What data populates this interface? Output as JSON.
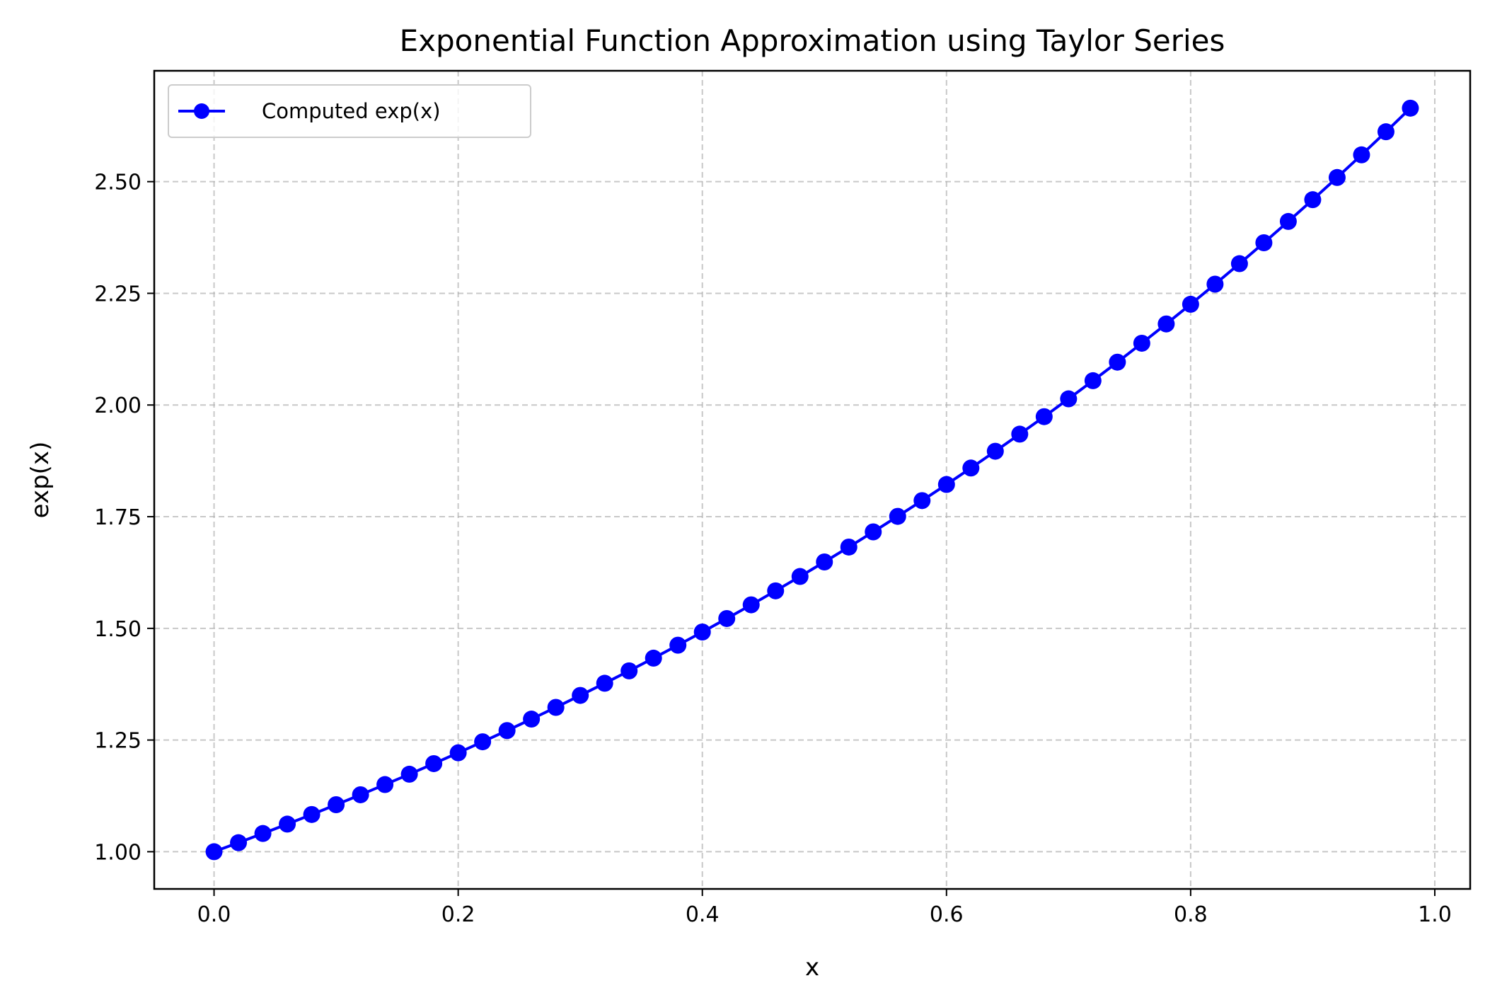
{
  "chart_data": {
    "type": "line",
    "title": "Exponential Function Approximation using Taylor Series",
    "xlabel": "x",
    "ylabel": "exp(x)",
    "xlim": [
      -0.049,
      1.029
    ],
    "ylim": [
      0.9167,
      2.7482
    ],
    "xticks": [
      0.0,
      0.2,
      0.4,
      0.6,
      0.8,
      1.0
    ],
    "xtick_labels": [
      "0.0",
      "0.2",
      "0.4",
      "0.6",
      "0.8",
      "1.0"
    ],
    "yticks": [
      1.0,
      1.25,
      1.5,
      1.75,
      2.0,
      2.25,
      2.5
    ],
    "ytick_labels": [
      "1.00",
      "1.25",
      "1.50",
      "1.75",
      "2.00",
      "2.25",
      "2.50"
    ],
    "grid": true,
    "legend_position": "top-left",
    "series": [
      {
        "name": "Computed exp(x)",
        "color": "#0000ff",
        "marker": "circle",
        "x": [
          0.0,
          0.02,
          0.04,
          0.06,
          0.08,
          0.1,
          0.12,
          0.14,
          0.16,
          0.18,
          0.2,
          0.22,
          0.24,
          0.26,
          0.28,
          0.3,
          0.32,
          0.34,
          0.36,
          0.38,
          0.4,
          0.42,
          0.44,
          0.46,
          0.48,
          0.5,
          0.52,
          0.54,
          0.56,
          0.58,
          0.6,
          0.62,
          0.64,
          0.66,
          0.68,
          0.7,
          0.72,
          0.74,
          0.76,
          0.78,
          0.8,
          0.82,
          0.84,
          0.86,
          0.88,
          0.9,
          0.92,
          0.94,
          0.96,
          0.98
        ],
        "y": [
          1.0,
          1.0202,
          1.0408,
          1.0618,
          1.0833,
          1.1052,
          1.1275,
          1.1503,
          1.1735,
          1.1972,
          1.2214,
          1.2461,
          1.2712,
          1.2969,
          1.3231,
          1.3499,
          1.3771,
          1.4049,
          1.4333,
          1.4623,
          1.4918,
          1.522,
          1.5527,
          1.584,
          1.6161,
          1.6487,
          1.682,
          1.716,
          1.7507,
          1.786,
          1.8221,
          1.8589,
          1.8965,
          1.9348,
          1.9739,
          2.0138,
          2.0544,
          2.0959,
          2.1383,
          2.1815,
          2.2255,
          2.2705,
          2.3164,
          2.3632,
          2.4109,
          2.4596,
          2.5093,
          2.56,
          2.6117,
          2.6645
        ]
      }
    ]
  }
}
